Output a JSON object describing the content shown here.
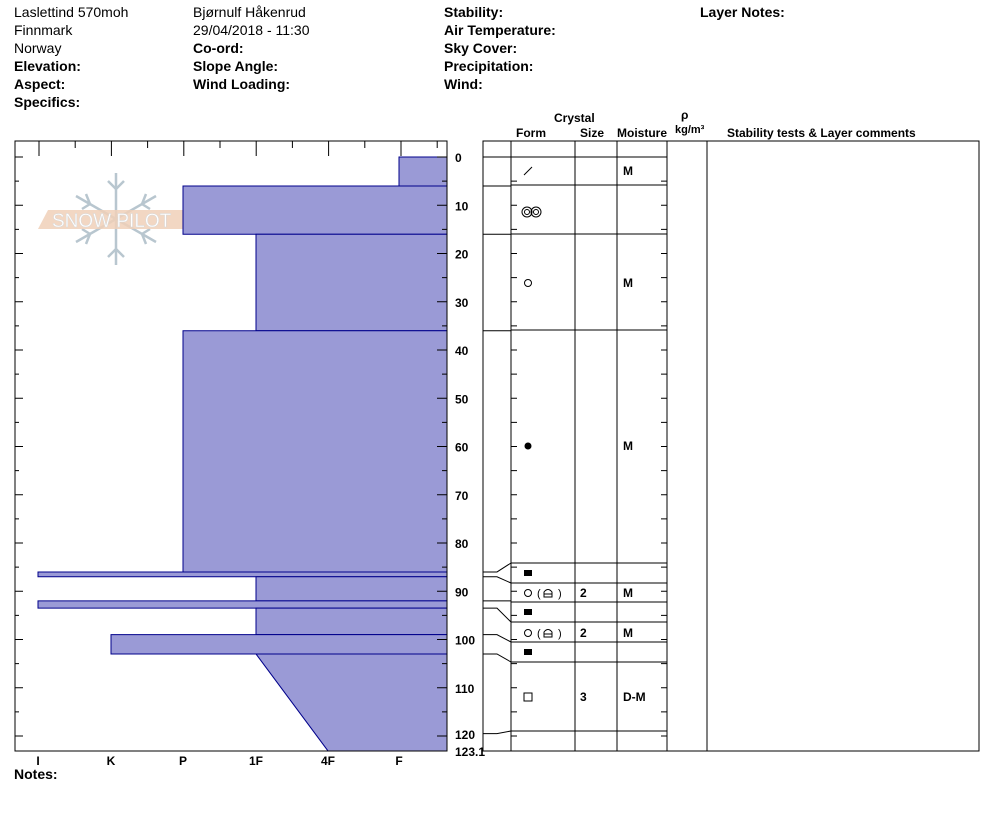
{
  "header": {
    "location": "Laslettind 570moh",
    "region": "Finnmark",
    "country": "Norway",
    "observer": "Bjørnulf Håkenrud",
    "datetime": "29/04/2018 - 11:30",
    "elevation_label": "Elevation:",
    "aspect_label": "Aspect:",
    "specifics_label": "Specifics:",
    "coord_label": "Co-ord:",
    "slope_label": "Slope Angle:",
    "wind_loading_label": "Wind Loading:",
    "stability_label": "Stability:",
    "air_temp_label": "Air Temperature:",
    "sky_label": "Sky Cover:",
    "precip_label": "Precipitation:",
    "wind_label": "Wind:",
    "layer_notes_label": "Layer Notes:"
  },
  "table_header": {
    "crystal": "Crystal",
    "form": "Form",
    "size": "Size",
    "moisture": "Moisture",
    "rho": "ρ",
    "density_unit": "kg/m³",
    "comments": "Stability tests & Layer comments"
  },
  "notes_label": "Notes:",
  "logo_text": "SNOW PILOT",
  "chart_data": {
    "type": "snow-profile-hardness",
    "bar_color": "#9a9ad6",
    "bar_edge_color": "#00008b",
    "depth_ticks": [
      "0",
      "10",
      "20",
      "30",
      "40",
      "50",
      "60",
      "70",
      "80",
      "90",
      "100",
      "110",
      "120",
      "123.1"
    ],
    "depth_range": [
      0,
      123.1
    ],
    "hardness_ticks": [
      "I",
      "K",
      "P",
      "1F",
      "4F",
      "F"
    ],
    "layers": [
      {
        "top": 0,
        "bottom": 6,
        "hardness_top": "F",
        "hardness_bottom": "F"
      },
      {
        "top": 6,
        "bottom": 16,
        "hardness_top": "P",
        "hardness_bottom": "P"
      },
      {
        "top": 16,
        "bottom": 36,
        "hardness_top": "1F",
        "hardness_bottom": "1F"
      },
      {
        "top": 36,
        "bottom": 86,
        "hardness_top": "P",
        "hardness_bottom": "P"
      },
      {
        "top": 86,
        "bottom": 87,
        "hardness_top": "I",
        "hardness_bottom": "I"
      },
      {
        "top": 87,
        "bottom": 92,
        "hardness_top": "1F",
        "hardness_bottom": "1F"
      },
      {
        "top": 92,
        "bottom": 93.5,
        "hardness_top": "I",
        "hardness_bottom": "I"
      },
      {
        "top": 93.5,
        "bottom": 99,
        "hardness_top": "1F",
        "hardness_bottom": "1F"
      },
      {
        "top": 99,
        "bottom": 103,
        "hardness_top": "K",
        "hardness_bottom": "K"
      },
      {
        "top": 103,
        "bottom": 123.1,
        "hardness_top": "1F",
        "hardness_bottom": "4F"
      }
    ],
    "table_rows": [
      {
        "form": "decomposing-fragments-icon",
        "size": "",
        "moisture": "M"
      },
      {
        "form": "melt-freeze-cluster-icon",
        "size": "",
        "moisture": ""
      },
      {
        "form": "rounded-grains-icon",
        "size": "",
        "moisture": "M"
      },
      {
        "form": "melt-forms-icon",
        "size": "",
        "moisture": "M"
      },
      {
        "form": "ice-formation-icon",
        "size": "",
        "moisture": ""
      },
      {
        "form": "rounded-faceted-icon",
        "size": "2",
        "moisture": "M"
      },
      {
        "form": "ice-formation-icon",
        "size": "",
        "moisture": ""
      },
      {
        "form": "rounded-faceted-icon",
        "size": "2",
        "moisture": "M"
      },
      {
        "form": "ice-formation-icon",
        "size": "",
        "moisture": ""
      },
      {
        "form": "faceted-crystals-icon",
        "size": "3",
        "moisture": "D-M"
      },
      {
        "form": "",
        "size": "",
        "moisture": ""
      }
    ]
  }
}
